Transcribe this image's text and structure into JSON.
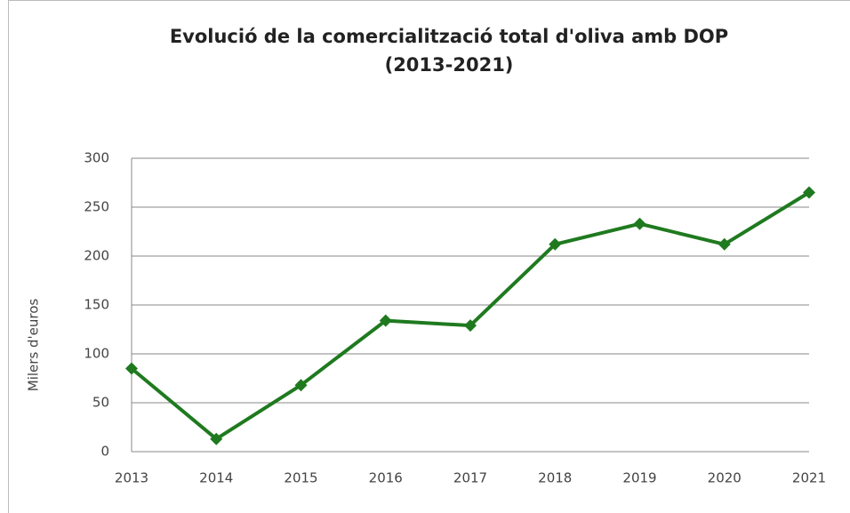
{
  "chart_data": {
    "type": "line",
    "title": "Evolució de la comercialització total d'oliva amb DOP",
    "subtitle": "(2013-2021)",
    "y_label": "Milers d'euros",
    "categories": [
      "2013",
      "2014",
      "2015",
      "2016",
      "2017",
      "2018",
      "2019",
      "2020",
      "2021"
    ],
    "series": [
      {
        "name": "DOP",
        "color": "#1f7a1f",
        "values": [
          85,
          13,
          68,
          134,
          129,
          212,
          233,
          212,
          265
        ]
      }
    ],
    "ylim": [
      0,
      300
    ],
    "yticks": [
      0,
      50,
      100,
      150,
      200,
      250,
      300
    ],
    "grid": true,
    "legend": false
  }
}
